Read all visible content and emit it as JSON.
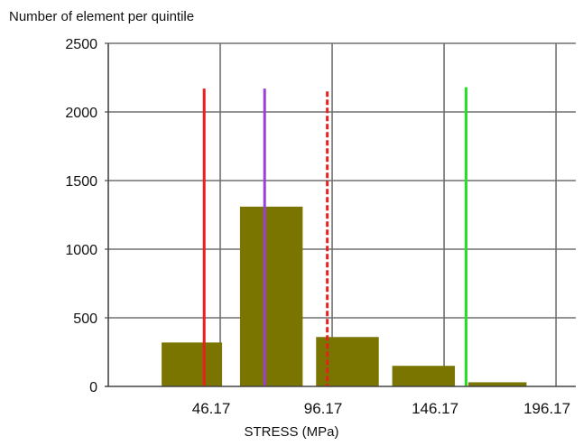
{
  "chart_data": {
    "type": "bar",
    "title": "Number of element per quintile",
    "xlabel": "STRESS (MPa)",
    "ylabel": "",
    "ylim": [
      0,
      2500
    ],
    "yticks": [
      "0",
      "500",
      "1000",
      "1500",
      "2000",
      "2500"
    ],
    "xticks": [
      {
        "value": 46.17,
        "label": "46.17"
      },
      {
        "value": 96.17,
        "label": "96.17"
      },
      {
        "value": 146.17,
        "label": "146.17"
      },
      {
        "value": 196.17,
        "label": "196.17"
      }
    ],
    "xlim": [
      -3.83,
      205
    ],
    "grid": true,
    "bars": [
      {
        "from": 20,
        "to": 47,
        "value": 320
      },
      {
        "from": 55,
        "to": 83,
        "value": 1310
      },
      {
        "from": 89,
        "to": 117,
        "value": 360
      },
      {
        "from": 123,
        "to": 151,
        "value": 150
      },
      {
        "from": 157,
        "to": 183,
        "value": 30
      }
    ],
    "markers": [
      {
        "x": 39,
        "height": 2170,
        "color": "#e82020",
        "style": "solid"
      },
      {
        "x": 66,
        "height": 2170,
        "color": "#9a40d8",
        "style": "solid"
      },
      {
        "x": 94,
        "height": 2150,
        "color": "#e82020",
        "style": "dashed"
      },
      {
        "x": 156,
        "height": 2180,
        "color": "#22e022",
        "style": "solid"
      }
    ],
    "colors": {
      "bar": "#7a7400",
      "grid": "#707070"
    }
  }
}
